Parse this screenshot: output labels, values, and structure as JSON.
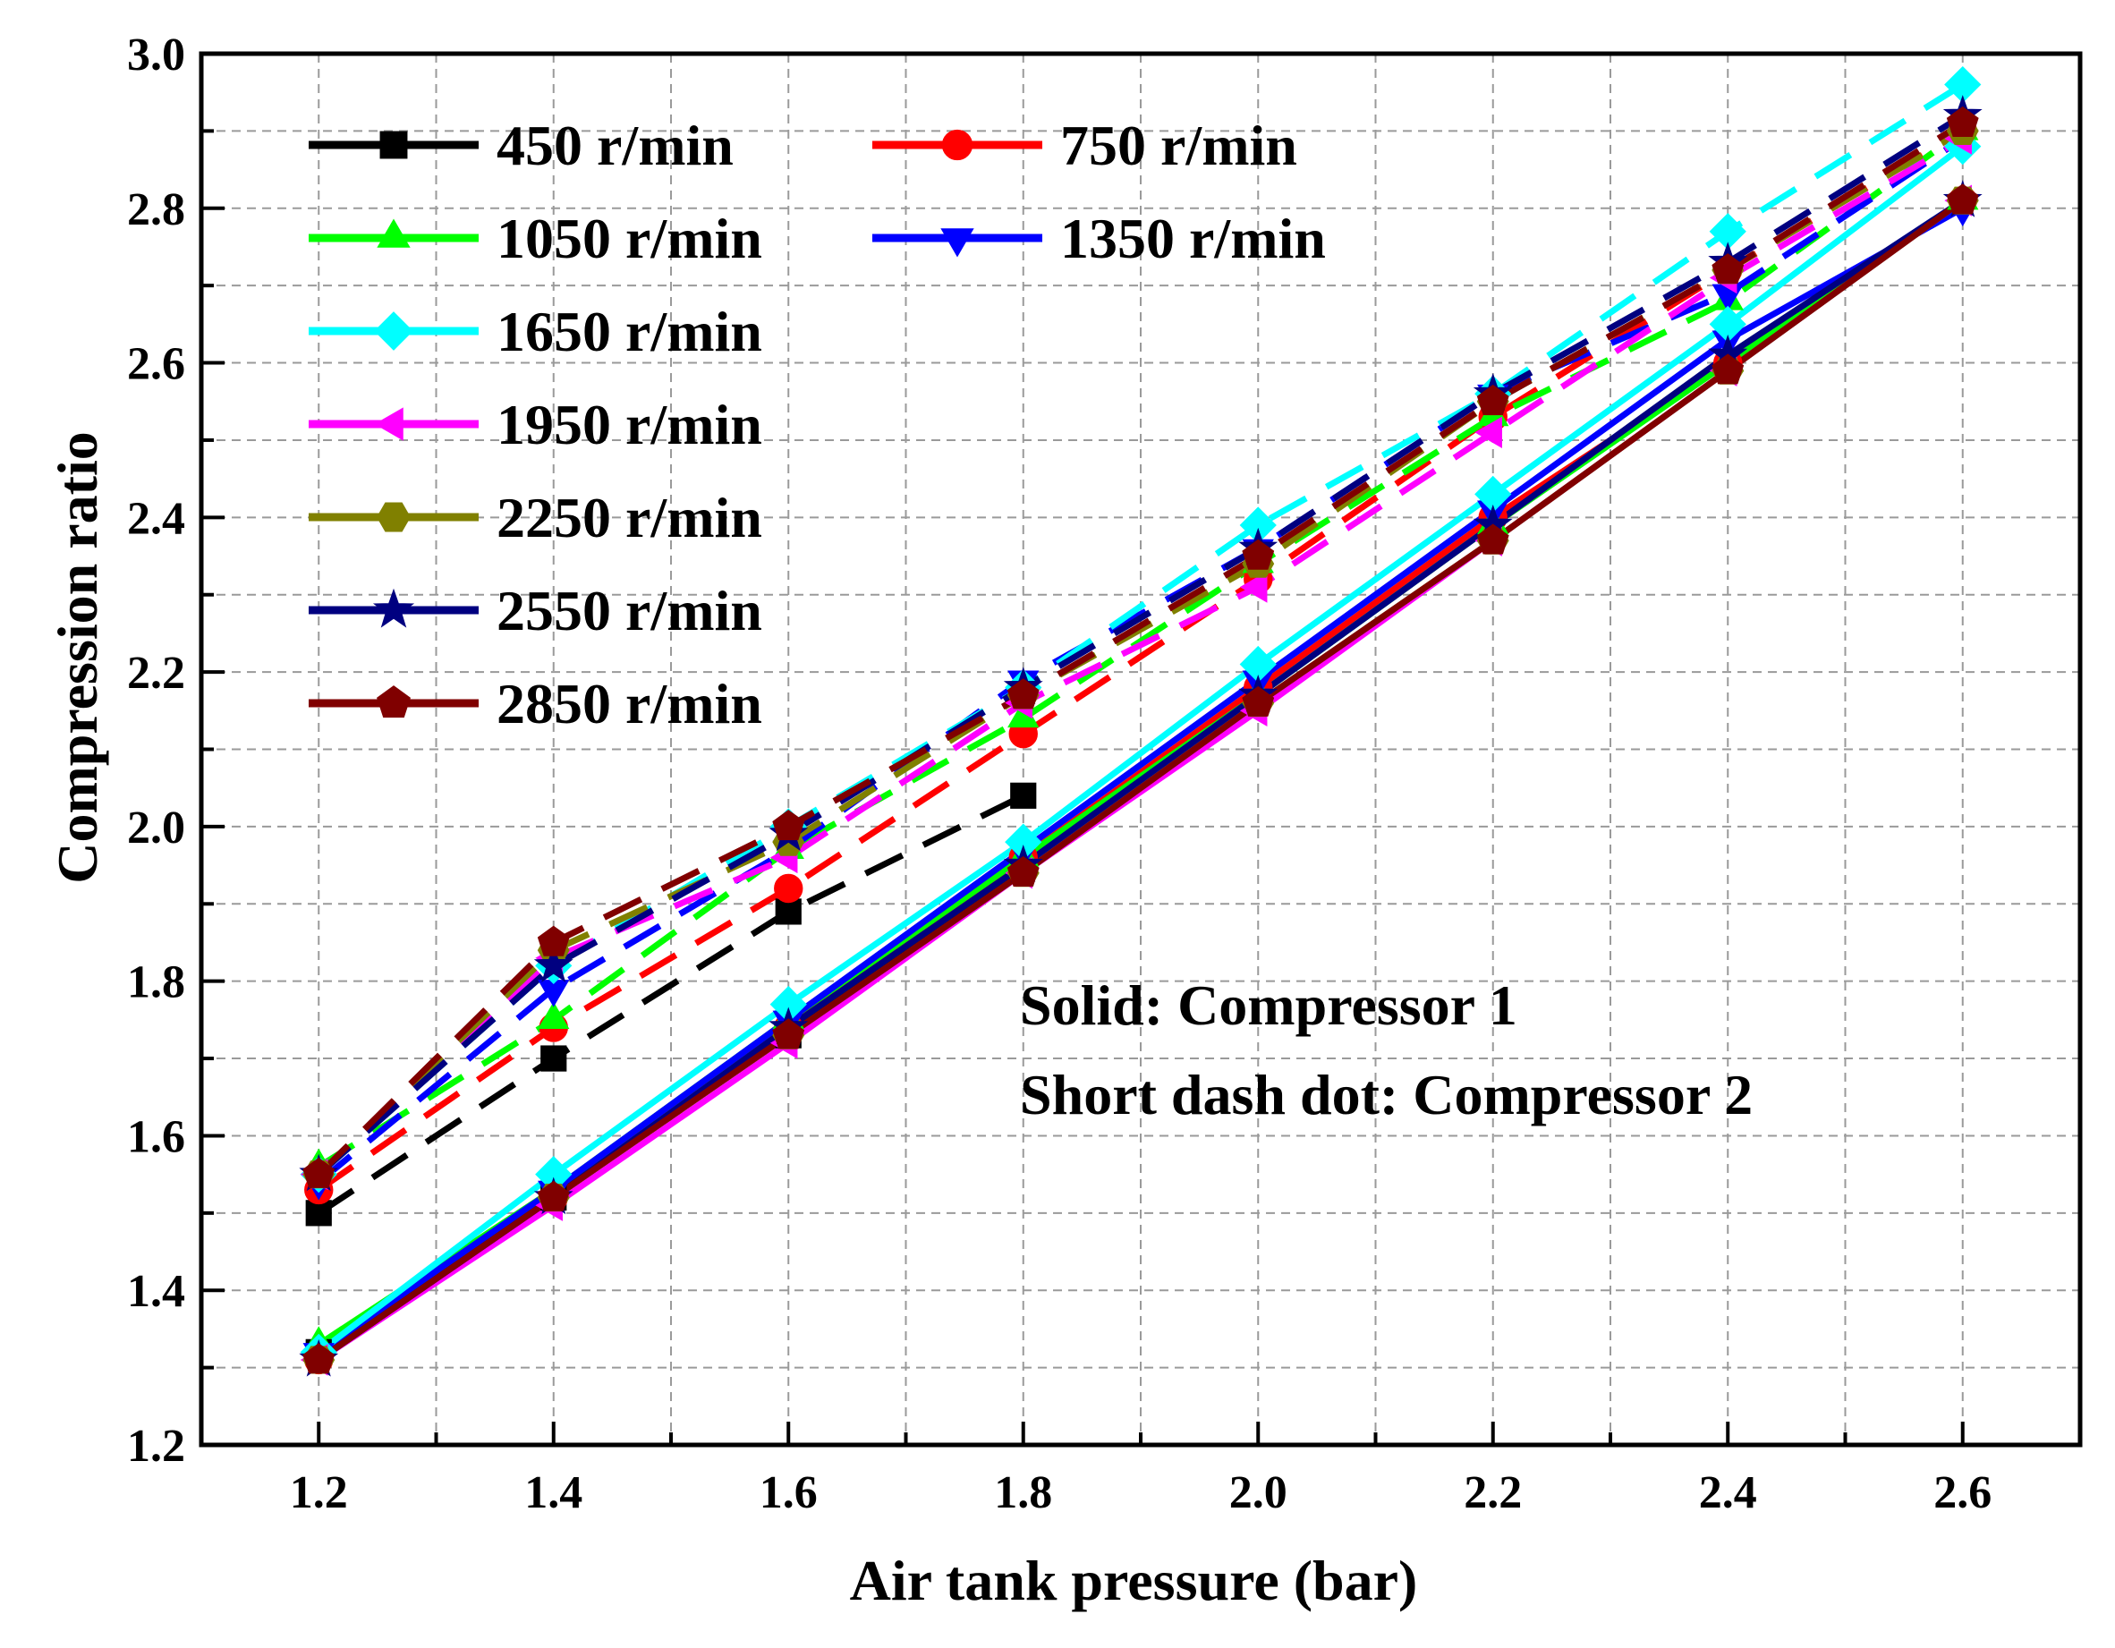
{
  "chart_data": {
    "type": "line",
    "title": "",
    "xlabel": "Air tank pressure (bar)",
    "ylabel": "Compression ratio",
    "xlim": [
      1.1,
      2.7
    ],
    "ylim": [
      1.2,
      3.0
    ],
    "xticks": [
      1.2,
      1.4,
      1.6,
      1.8,
      2.0,
      2.2,
      2.4,
      2.6
    ],
    "xtick_labels": [
      "1.2",
      "1.4",
      "1.6",
      "1.8",
      "2.0",
      "2.2",
      "2.4",
      "2.6"
    ],
    "yticks": [
      1.2,
      1.4,
      1.6,
      1.8,
      2.0,
      2.2,
      2.4,
      2.6,
      2.8,
      3.0
    ],
    "ytick_labels": [
      "1.2",
      "1.4",
      "1.6",
      "1.8",
      "2.0",
      "2.2",
      "2.4",
      "2.6",
      "2.8",
      "3.0"
    ],
    "grid": true,
    "legend_position": "top-left",
    "annotations": [
      "Solid: Compressor 1",
      "Short dash dot: Compressor 2"
    ],
    "series": [
      {
        "name": "450 r/min",
        "color": "#000000",
        "marker": "square",
        "compressor1": {
          "x": [
            1.2,
            1.4,
            1.6,
            1.8
          ],
          "y": [
            1.32,
            1.52,
            1.73,
            1.95
          ]
        },
        "compressor2": {
          "x": [
            1.2,
            1.4,
            1.6,
            1.8
          ],
          "y": [
            1.5,
            1.7,
            1.89,
            2.04
          ]
        }
      },
      {
        "name": "750 r/min",
        "color": "#ff0000",
        "marker": "circle",
        "compressor1": {
          "x": [
            1.2,
            1.4,
            1.6,
            1.8,
            2.0,
            2.2,
            2.4,
            2.6
          ],
          "y": [
            1.31,
            1.52,
            1.74,
            1.96,
            2.18,
            2.4,
            2.6,
            2.81
          ]
        },
        "compressor2": {
          "x": [
            1.2,
            1.4,
            1.6,
            1.8,
            2.0,
            2.2,
            2.4,
            2.6
          ],
          "y": [
            1.53,
            1.74,
            1.92,
            2.12,
            2.32,
            2.53,
            2.72,
            2.9
          ]
        }
      },
      {
        "name": "1050 r/min",
        "color": "#00ff00",
        "marker": "triangle-up",
        "compressor1": {
          "x": [
            1.2,
            1.4,
            1.6,
            1.8,
            2.0,
            2.2,
            2.4,
            2.6
          ],
          "y": [
            1.33,
            1.53,
            1.75,
            1.96,
            2.17,
            2.39,
            2.6,
            2.81
          ]
        },
        "compressor2": {
          "x": [
            1.2,
            1.4,
            1.6,
            1.8,
            2.0,
            2.2,
            2.4,
            2.6
          ],
          "y": [
            1.56,
            1.75,
            1.97,
            2.14,
            2.34,
            2.53,
            2.68,
            2.9
          ]
        }
      },
      {
        "name": "1350 r/min",
        "color": "#0000ff",
        "marker": "triangle-down",
        "compressor1": {
          "x": [
            1.2,
            1.4,
            1.6,
            1.8,
            2.0,
            2.2,
            2.4,
            2.6
          ],
          "y": [
            1.32,
            1.53,
            1.75,
            1.97,
            2.19,
            2.41,
            2.63,
            2.8
          ]
        },
        "compressor2": {
          "x": [
            1.2,
            1.4,
            1.6,
            1.8,
            2.0,
            2.2,
            2.4,
            2.6
          ],
          "y": [
            1.54,
            1.79,
            1.97,
            2.19,
            2.36,
            2.56,
            2.69,
            2.89
          ]
        }
      },
      {
        "name": "1650 r/min",
        "color": "#00ffff",
        "marker": "diamond",
        "compressor1": {
          "x": [
            1.2,
            1.4,
            1.6,
            1.8,
            2.0,
            2.2,
            2.4,
            2.6
          ],
          "y": [
            1.32,
            1.55,
            1.77,
            1.98,
            2.21,
            2.43,
            2.65,
            2.88
          ]
        },
        "compressor2": {
          "x": [
            1.2,
            1.4,
            1.6,
            1.8,
            2.0,
            2.2,
            2.4,
            2.6
          ],
          "y": [
            1.55,
            1.82,
            2.0,
            2.18,
            2.39,
            2.56,
            2.77,
            2.96
          ]
        }
      },
      {
        "name": "1950 r/min",
        "color": "#ff00ff",
        "marker": "triangle-left",
        "compressor1": {
          "x": [
            1.2,
            1.4,
            1.6,
            1.8,
            2.0,
            2.2,
            2.4,
            2.6
          ],
          "y": [
            1.31,
            1.51,
            1.72,
            1.94,
            2.15,
            2.37,
            2.59,
            2.81
          ]
        },
        "compressor2": {
          "x": [
            1.2,
            1.4,
            1.6,
            1.8,
            2.0,
            2.2,
            2.4,
            2.6
          ],
          "y": [
            1.55,
            1.83,
            1.96,
            2.16,
            2.31,
            2.51,
            2.71,
            2.89
          ]
        }
      },
      {
        "name": "2250 r/min",
        "color": "#808000",
        "marker": "hexagon",
        "compressor1": {
          "x": [
            1.2,
            1.4,
            1.6,
            1.8,
            2.0,
            2.2,
            2.4,
            2.6
          ],
          "y": [
            1.31,
            1.52,
            1.73,
            1.94,
            2.16,
            2.37,
            2.59,
            2.81
          ]
        },
        "compressor2": {
          "x": [
            1.2,
            1.4,
            1.6,
            1.8,
            2.0,
            2.2,
            2.4,
            2.6
          ],
          "y": [
            1.55,
            1.84,
            1.98,
            2.17,
            2.34,
            2.55,
            2.72,
            2.9
          ]
        }
      },
      {
        "name": "2550 r/min",
        "color": "#000080",
        "marker": "star",
        "compressor1": {
          "x": [
            1.2,
            1.4,
            1.6,
            1.8,
            2.0,
            2.2,
            2.4,
            2.6
          ],
          "y": [
            1.31,
            1.52,
            1.74,
            1.95,
            2.17,
            2.39,
            2.61,
            2.81
          ]
        },
        "compressor2": {
          "x": [
            1.2,
            1.4,
            1.6,
            1.8,
            2.0,
            2.2,
            2.4,
            2.6
          ],
          "y": [
            1.55,
            1.82,
            1.99,
            2.18,
            2.36,
            2.56,
            2.73,
            2.92
          ]
        }
      },
      {
        "name": "2850 r/min",
        "color": "#800000",
        "marker": "pentagon",
        "compressor1": {
          "x": [
            1.2,
            1.4,
            1.6,
            1.8,
            2.0,
            2.2,
            2.4,
            2.6
          ],
          "y": [
            1.31,
            1.52,
            1.73,
            1.94,
            2.16,
            2.37,
            2.59,
            2.81
          ]
        },
        "compressor2": {
          "x": [
            1.2,
            1.4,
            1.6,
            1.8,
            2.0,
            2.2,
            2.4,
            2.6
          ],
          "y": [
            1.55,
            1.85,
            2.0,
            2.17,
            2.35,
            2.55,
            2.72,
            2.91
          ]
        }
      }
    ]
  }
}
